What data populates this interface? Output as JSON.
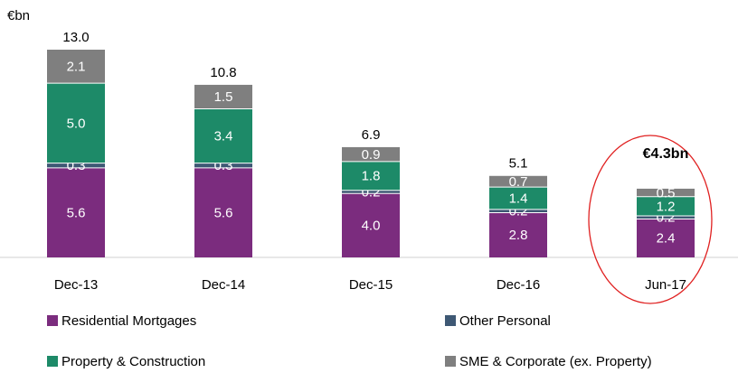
{
  "chart_data": {
    "type": "stacked_bar",
    "unit_label": "€bn",
    "categories": [
      "Dec-13",
      "Dec-14",
      "Dec-15",
      "Dec-16",
      "Jun-17"
    ],
    "series": [
      {
        "name": "Residential Mortgages",
        "color": "#7b2c7e",
        "values": [
          5.6,
          5.6,
          4.0,
          2.8,
          2.4
        ],
        "value_labels": [
          "5.6",
          "5.6",
          "4.0",
          "2.8",
          "2.4"
        ]
      },
      {
        "name": "Other Personal",
        "color": "#3e5874",
        "values": [
          0.3,
          0.3,
          0.2,
          0.2,
          0.2
        ],
        "value_labels": [
          "0.3",
          "0.3",
          "0.2",
          "0.2",
          "0.2"
        ]
      },
      {
        "name": "Property & Construction",
        "color": "#1d8a68",
        "values": [
          5.0,
          3.4,
          1.8,
          1.4,
          1.2
        ],
        "value_labels": [
          "5.0",
          "3.4",
          "1.8",
          "1.4",
          "1.2"
        ]
      },
      {
        "name": "SME & Corporate (ex. Property)",
        "color": "#7f7f7f",
        "values": [
          2.1,
          1.5,
          0.9,
          0.7,
          0.5
        ],
        "value_labels": [
          "2.1",
          "1.5",
          "0.9",
          "0.7",
          "0.5"
        ]
      }
    ],
    "totals": {
      "values": [
        13.0,
        10.8,
        6.9,
        5.1,
        4.3
      ],
      "value_labels": [
        "13.0",
        "10.8",
        "6.9",
        "5.1",
        "€4.3bn"
      ]
    },
    "ylim": [
      0,
      13
    ]
  }
}
